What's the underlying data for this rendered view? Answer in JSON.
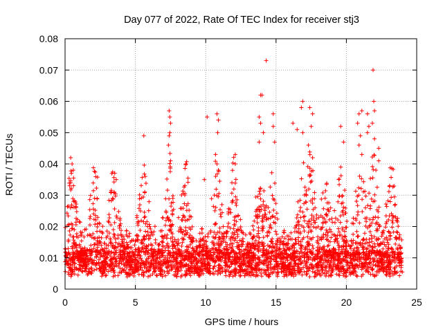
{
  "chart_data": {
    "type": "scatter",
    "title": "Day 077 of 2022, Rate Of TEC Index for receiver stj3",
    "xlabel": "GPS time / hours",
    "ylabel": "ROTI / TECUs",
    "xlim": [
      0,
      25
    ],
    "ylim": [
      0,
      0.08
    ],
    "xticks": [
      0,
      5,
      10,
      15,
      20,
      25
    ],
    "xtick_labels": [
      "0",
      "5",
      "10",
      "15",
      "20",
      "25"
    ],
    "yticks": [
      0,
      0.01,
      0.02,
      0.03,
      0.04,
      0.05,
      0.06,
      0.07,
      0.08
    ],
    "ytick_labels": [
      "0",
      "0.01",
      "0.02",
      "0.03",
      "0.04",
      "0.05",
      "0.06",
      "0.07",
      "0.08"
    ],
    "grid": true,
    "marker": "+",
    "series": [
      {
        "name": "stj3",
        "color": "#ff0000",
        "x_range": [
          0,
          24
        ],
        "baseline": 0.0075,
        "notable_points": [
          {
            "x": 0.4,
            "y": 0.042
          },
          {
            "x": 0.5,
            "y": 0.04
          },
          {
            "x": 0.45,
            "y": 0.037
          },
          {
            "x": 0.4,
            "y": 0.034
          },
          {
            "x": 0.6,
            "y": 0.028
          },
          {
            "x": 2.1,
            "y": 0.029
          },
          {
            "x": 3.5,
            "y": 0.031
          },
          {
            "x": 5.6,
            "y": 0.049
          },
          {
            "x": 5.7,
            "y": 0.036
          },
          {
            "x": 7.4,
            "y": 0.057
          },
          {
            "x": 7.45,
            "y": 0.055
          },
          {
            "x": 7.5,
            "y": 0.053
          },
          {
            "x": 7.45,
            "y": 0.05
          },
          {
            "x": 7.4,
            "y": 0.049
          },
          {
            "x": 7.35,
            "y": 0.046
          },
          {
            "x": 7.5,
            "y": 0.041
          },
          {
            "x": 8.6,
            "y": 0.04
          },
          {
            "x": 9.9,
            "y": 0.035
          },
          {
            "x": 10.1,
            "y": 0.055
          },
          {
            "x": 10.8,
            "y": 0.056
          },
          {
            "x": 10.9,
            "y": 0.054
          },
          {
            "x": 10.85,
            "y": 0.05
          },
          {
            "x": 10.7,
            "y": 0.043
          },
          {
            "x": 10.8,
            "y": 0.04
          },
          {
            "x": 10.9,
            "y": 0.038
          },
          {
            "x": 12.1,
            "y": 0.043
          },
          {
            "x": 12.1,
            "y": 0.04
          },
          {
            "x": 12.0,
            "y": 0.032
          },
          {
            "x": 13.8,
            "y": 0.055
          },
          {
            "x": 13.9,
            "y": 0.062
          },
          {
            "x": 14.0,
            "y": 0.062
          },
          {
            "x": 13.9,
            "y": 0.053
          },
          {
            "x": 13.8,
            "y": 0.047
          },
          {
            "x": 14.1,
            "y": 0.05
          },
          {
            "x": 14.3,
            "y": 0.073
          },
          {
            "x": 14.8,
            "y": 0.056
          },
          {
            "x": 14.8,
            "y": 0.052
          },
          {
            "x": 14.9,
            "y": 0.047
          },
          {
            "x": 16.9,
            "y": 0.06
          },
          {
            "x": 16.8,
            "y": 0.058
          },
          {
            "x": 16.9,
            "y": 0.05
          },
          {
            "x": 16.2,
            "y": 0.053
          },
          {
            "x": 16.5,
            "y": 0.051
          },
          {
            "x": 17.4,
            "y": 0.058
          },
          {
            "x": 17.6,
            "y": 0.056
          },
          {
            "x": 17.5,
            "y": 0.052
          },
          {
            "x": 17.3,
            "y": 0.046
          },
          {
            "x": 17.6,
            "y": 0.042
          },
          {
            "x": 19.6,
            "y": 0.052
          },
          {
            "x": 19.8,
            "y": 0.047
          },
          {
            "x": 19.6,
            "y": 0.039
          },
          {
            "x": 20.9,
            "y": 0.056
          },
          {
            "x": 21.1,
            "y": 0.057
          },
          {
            "x": 20.8,
            "y": 0.053
          },
          {
            "x": 21.0,
            "y": 0.049
          },
          {
            "x": 20.9,
            "y": 0.046
          },
          {
            "x": 21.1,
            "y": 0.043
          },
          {
            "x": 21.5,
            "y": 0.056
          },
          {
            "x": 21.6,
            "y": 0.052
          },
          {
            "x": 21.5,
            "y": 0.05
          },
          {
            "x": 21.9,
            "y": 0.07
          },
          {
            "x": 21.95,
            "y": 0.06
          },
          {
            "x": 22.0,
            "y": 0.057
          },
          {
            "x": 21.85,
            "y": 0.053
          },
          {
            "x": 22.0,
            "y": 0.048
          },
          {
            "x": 22.3,
            "y": 0.045
          },
          {
            "x": 22.3,
            "y": 0.041
          },
          {
            "x": 22.1,
            "y": 0.038
          }
        ]
      }
    ]
  }
}
